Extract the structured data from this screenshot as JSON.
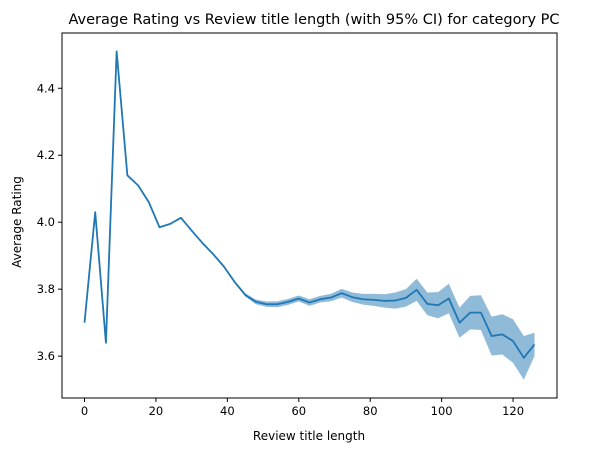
{
  "chart_data": {
    "type": "line",
    "title": "Average Rating vs Review title length (with 95% CI) for category PC",
    "xlabel": "Review title length",
    "ylabel": "Average Rating",
    "xlim": [
      -6.3,
      132.3
    ],
    "ylim": [
      3.475,
      4.565
    ],
    "xticks": [
      0,
      20,
      40,
      60,
      80,
      100,
      120
    ],
    "yticks": [
      3.6,
      3.8,
      4.0,
      4.2,
      4.4
    ],
    "ytick_labels": [
      "3.6",
      "3.8",
      "4.0",
      "4.2",
      "4.4"
    ],
    "grid": false,
    "series": [
      {
        "color": "#1f77b4",
        "x": [
          0,
          3,
          6,
          9,
          12,
          15,
          18,
          21,
          24,
          27,
          30,
          33,
          36,
          39,
          42,
          45,
          48,
          51,
          54,
          57,
          60,
          63,
          66,
          69,
          72,
          75,
          78,
          81,
          84,
          87,
          90,
          93,
          96,
          99,
          102,
          105,
          108,
          111,
          114,
          117,
          120,
          123,
          126
        ],
        "y": [
          3.7,
          4.03,
          3.64,
          4.51,
          4.14,
          4.11,
          4.06,
          3.985,
          3.995,
          4.013,
          3.975,
          3.938,
          3.905,
          3.868,
          3.822,
          3.783,
          3.762,
          3.755,
          3.755,
          3.762,
          3.772,
          3.76,
          3.77,
          3.775,
          3.788,
          3.776,
          3.77,
          3.768,
          3.765,
          3.766,
          3.774,
          3.798,
          3.756,
          3.752,
          3.772,
          3.7,
          3.73,
          3.73,
          3.66,
          3.665,
          3.645,
          3.595,
          3.635
        ],
        "ci_lower": [
          3.7,
          4.03,
          3.64,
          4.51,
          4.14,
          4.11,
          4.06,
          3.985,
          3.995,
          4.013,
          3.975,
          3.938,
          3.905,
          3.868,
          3.818,
          3.778,
          3.755,
          3.747,
          3.746,
          3.753,
          3.763,
          3.75,
          3.76,
          3.764,
          3.775,
          3.762,
          3.754,
          3.75,
          3.745,
          3.742,
          3.748,
          3.765,
          3.722,
          3.713,
          3.728,
          3.655,
          3.68,
          3.678,
          3.602,
          3.605,
          3.58,
          3.53,
          3.6
        ],
        "ci_upper": [
          3.7,
          4.03,
          3.64,
          4.51,
          4.14,
          4.11,
          4.06,
          3.985,
          3.995,
          4.013,
          3.975,
          3.938,
          3.905,
          3.868,
          3.826,
          3.788,
          3.769,
          3.763,
          3.764,
          3.771,
          3.781,
          3.77,
          3.78,
          3.786,
          3.801,
          3.79,
          3.786,
          3.786,
          3.785,
          3.79,
          3.8,
          3.831,
          3.79,
          3.791,
          3.816,
          3.745,
          3.78,
          3.782,
          3.718,
          3.725,
          3.71,
          3.66,
          3.67
        ]
      }
    ]
  }
}
